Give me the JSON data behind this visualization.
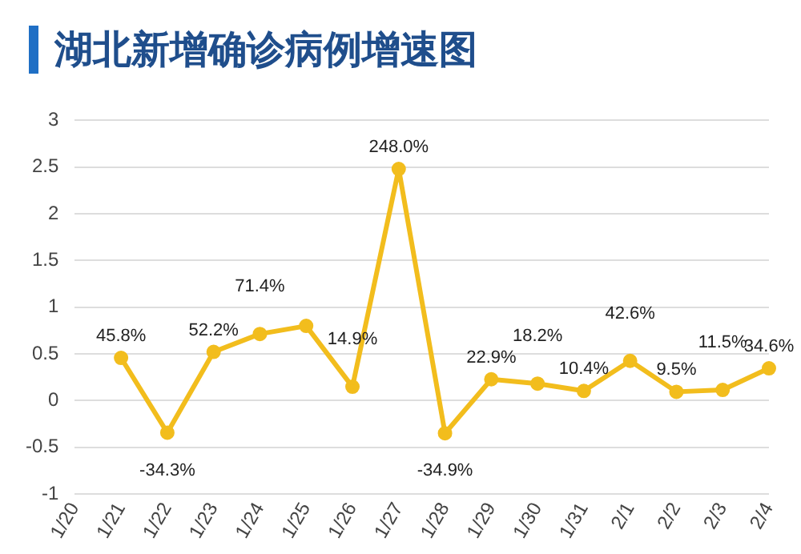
{
  "chart_data": {
    "type": "line",
    "title": "湖北新增确诊病例增速图",
    "categories": [
      "1/20",
      "1/21",
      "1/22",
      "1/23",
      "1/24",
      "1/25",
      "1/26",
      "1/27",
      "1/28",
      "1/29",
      "1/30",
      "1/31",
      "2/1",
      "2/2",
      "2/3",
      "2/4"
    ],
    "series": [
      {
        "color": "#f2bd1d",
        "values": [
          null,
          0.458,
          -0.343,
          0.522,
          0.714,
          0.8,
          0.149,
          2.48,
          -0.349,
          0.229,
          0.182,
          0.104,
          0.426,
          0.095,
          0.115,
          0.346
        ],
        "value_labels": [
          null,
          "45.8%",
          "-34.3%",
          "52.2%",
          "71.4%",
          null,
          "14.9%",
          "248.0%",
          "-34.9%",
          "22.9%",
          "18.2%",
          "10.4%",
          "42.6%",
          "9.5%",
          "11.5%",
          "34.6%"
        ]
      }
    ],
    "ylim": [
      -1,
      3
    ],
    "yticks": [
      -1,
      -0.5,
      0,
      0.5,
      1,
      1.5,
      2,
      2.5,
      3
    ],
    "grid": "y",
    "marker": "circle",
    "line_style": "solid",
    "legend": false
  }
}
